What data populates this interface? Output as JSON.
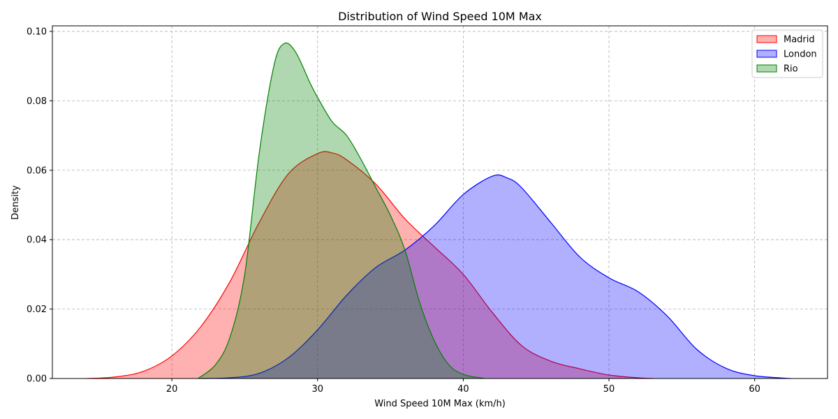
{
  "chart_data": {
    "type": "area",
    "title": "Distribution of Wind Speed 10M Max",
    "xlabel": "Wind Speed 10M Max (km/h)",
    "ylabel": "Density",
    "xlim": [
      11.8,
      65
    ],
    "ylim": [
      0,
      0.1016
    ],
    "xticks": [
      20,
      30,
      40,
      50,
      60
    ],
    "yticks": [
      0.0,
      0.02,
      0.04,
      0.06,
      0.08,
      0.1
    ],
    "ytick_labels": [
      "0.00",
      "0.02",
      "0.04",
      "0.06",
      "0.08",
      "0.10"
    ],
    "grid": true,
    "legend_position": "top-right",
    "series": [
      {
        "name": "Madrid",
        "color": "#ff0000",
        "fill": "#ff0000",
        "points": [
          [
            14.2,
            0
          ],
          [
            16,
            0.0004
          ],
          [
            18,
            0.002
          ],
          [
            20,
            0.0065
          ],
          [
            22,
            0.015
          ],
          [
            24,
            0.028
          ],
          [
            26,
            0.045
          ],
          [
            28,
            0.059
          ],
          [
            30,
            0.0648
          ],
          [
            31,
            0.065
          ],
          [
            32,
            0.063
          ],
          [
            34,
            0.056
          ],
          [
            36,
            0.046
          ],
          [
            38,
            0.038
          ],
          [
            40,
            0.03
          ],
          [
            42,
            0.019
          ],
          [
            44,
            0.0095
          ],
          [
            46,
            0.005
          ],
          [
            48,
            0.0028
          ],
          [
            50,
            0.001
          ],
          [
            52,
            0.0002
          ],
          [
            53,
            0
          ]
        ]
      },
      {
        "name": "London",
        "color": "#0000ff",
        "fill": "#0000ff",
        "points": [
          [
            22,
            0
          ],
          [
            24,
            0.0002
          ],
          [
            26,
            0.0015
          ],
          [
            28,
            0.006
          ],
          [
            30,
            0.014
          ],
          [
            32,
            0.024
          ],
          [
            34,
            0.032
          ],
          [
            36,
            0.037
          ],
          [
            38,
            0.044
          ],
          [
            40,
            0.053
          ],
          [
            42,
            0.0583
          ],
          [
            43,
            0.0578
          ],
          [
            44,
            0.055
          ],
          [
            46,
            0.045
          ],
          [
            48,
            0.035
          ],
          [
            50,
            0.029
          ],
          [
            52,
            0.025
          ],
          [
            54,
            0.018
          ],
          [
            56,
            0.0085
          ],
          [
            58,
            0.003
          ],
          [
            60,
            0.0008
          ],
          [
            62.5,
            0
          ]
        ]
      },
      {
        "name": "Rio",
        "color": "#008000",
        "fill": "#008000",
        "points": [
          [
            21.8,
            0
          ],
          [
            23,
            0.004
          ],
          [
            24,
            0.012
          ],
          [
            25,
            0.03
          ],
          [
            26,
            0.065
          ],
          [
            27,
            0.09
          ],
          [
            27.7,
            0.0965
          ],
          [
            28.5,
            0.094
          ],
          [
            29.5,
            0.085
          ],
          [
            30,
            0.081
          ],
          [
            31,
            0.074
          ],
          [
            32,
            0.07
          ],
          [
            33,
            0.063
          ],
          [
            34,
            0.055
          ],
          [
            35,
            0.047
          ],
          [
            36,
            0.037
          ],
          [
            37,
            0.022
          ],
          [
            38,
            0.011
          ],
          [
            39,
            0.004
          ],
          [
            40,
            0.0012
          ],
          [
            41.5,
            0
          ]
        ]
      }
    ]
  }
}
